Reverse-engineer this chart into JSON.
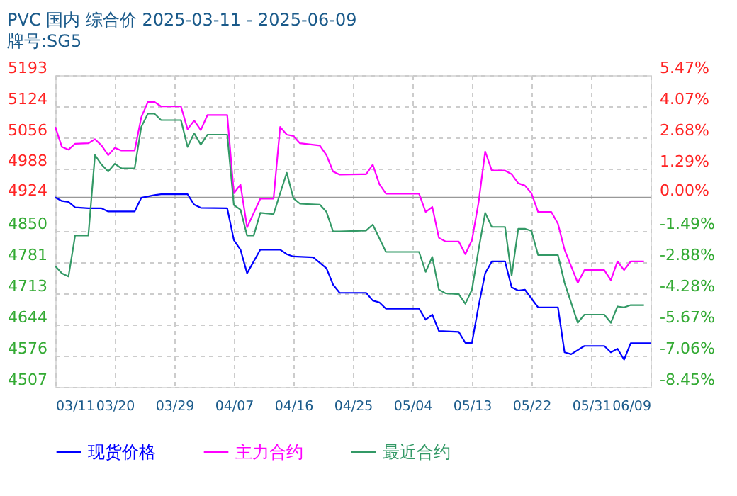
{
  "chart_data": {
    "type": "line",
    "title": "PVC 国内 综合价 2025-03-11 - 2025-06-09",
    "subtitle": "牌号:SG5",
    "xlim": [
      "2025-03-11",
      "2025-06-09"
    ],
    "xticks": [
      {
        "value": "2025-03-11",
        "label": "03/11"
      },
      {
        "value": "2025-03-20",
        "label": "03/20"
      },
      {
        "value": "2025-03-29",
        "label": "03/29"
      },
      {
        "value": "2025-04-07",
        "label": "04/07"
      },
      {
        "value": "2025-04-16",
        "label": "04/16"
      },
      {
        "value": "2025-04-25",
        "label": "04/25"
      },
      {
        "value": "2025-05-04",
        "label": "05/04"
      },
      {
        "value": "2025-05-13",
        "label": "05/13"
      },
      {
        "value": "2025-05-22",
        "label": "05/22"
      },
      {
        "value": "2025-05-31",
        "label": "05/31"
      },
      {
        "value": "2025-06-09",
        "label": "06/09"
      }
    ],
    "ylim": [
      4507,
      5193
    ],
    "yticks": [
      4507,
      4576,
      4644,
      4713,
      4781,
      4850,
      4924,
      4988,
      5056,
      5124,
      5193
    ],
    "y2lim": [
      -8.45,
      5.47
    ],
    "y2ticks": [
      {
        "value": -8.45,
        "label": "-8.45%"
      },
      {
        "value": -7.06,
        "label": "-7.06%"
      },
      {
        "value": -5.67,
        "label": "-5.67%"
      },
      {
        "value": -4.28,
        "label": "-4.28%"
      },
      {
        "value": -2.88,
        "label": "-2.88%"
      },
      {
        "value": -1.49,
        "label": "-1.49%"
      },
      {
        "value": 0,
        "label": "0.00%"
      },
      {
        "value": 1.29,
        "label": "1.29%"
      },
      {
        "value": 2.68,
        "label": "2.68%"
      },
      {
        "value": 4.07,
        "label": "4.07%"
      },
      {
        "value": 5.47,
        "label": "5.47%"
      }
    ],
    "ref_lines": [
      {
        "axis": "y2",
        "value": 0,
        "color": "#999999",
        "line_style": "solid"
      }
    ],
    "grid": true,
    "legend": "bottom",
    "line_style": "solid",
    "series": [
      {
        "name": "现货价格",
        "color": "#0000ff",
        "x": [
          "2025-03-11",
          "2025-03-12",
          "2025-03-13",
          "2025-03-14",
          "2025-03-16",
          "2025-03-18",
          "2025-03-19",
          "2025-03-23",
          "2025-03-24",
          "2025-03-26",
          "2025-03-27",
          "2025-03-31",
          "2025-04-01",
          "2025-04-02",
          "2025-04-06",
          "2025-04-07",
          "2025-04-08",
          "2025-04-09",
          "2025-04-11",
          "2025-04-14",
          "2025-04-15",
          "2025-04-16",
          "2025-04-19",
          "2025-04-21",
          "2025-04-22",
          "2025-04-23",
          "2025-04-25",
          "2025-04-27",
          "2025-04-28",
          "2025-04-29",
          "2025-04-30",
          "2025-05-05",
          "2025-05-06",
          "2025-05-07",
          "2025-05-08",
          "2025-05-11",
          "2025-05-12",
          "2025-05-13",
          "2025-05-14",
          "2025-05-15",
          "2025-05-16",
          "2025-05-18",
          "2025-05-19",
          "2025-05-20",
          "2025-05-21",
          "2025-05-23",
          "2025-05-26",
          "2025-05-27",
          "2025-05-28",
          "2025-05-30",
          "2025-06-02",
          "2025-06-03",
          "2025-06-04",
          "2025-06-05",
          "2025-06-06",
          "2025-06-09"
        ],
        "values": [
          4924,
          4916,
          4914,
          4902,
          4900,
          4900,
          4893,
          4893,
          4923,
          4929,
          4931,
          4931,
          4908,
          4901,
          4900,
          4830,
          4809,
          4757,
          4809,
          4809,
          4799,
          4794,
          4792,
          4768,
          4732,
          4714,
          4714,
          4714,
          4697,
          4693,
          4679,
          4679,
          4655,
          4666,
          4630,
          4628,
          4604,
          4604,
          4685,
          4757,
          4783,
          4783,
          4726,
          4719,
          4721,
          4682,
          4682,
          4583,
          4579,
          4597,
          4597,
          4583,
          4591,
          4567,
          4603,
          4603
        ]
      },
      {
        "name": "主力合约",
        "color": "#ff00ff",
        "x": [
          "2025-03-11",
          "2025-03-12",
          "2025-03-13",
          "2025-03-14",
          "2025-03-16",
          "2025-03-17",
          "2025-03-18",
          "2025-03-19",
          "2025-03-20",
          "2025-03-21",
          "2025-03-23",
          "2025-03-24",
          "2025-03-25",
          "2025-03-26",
          "2025-03-27",
          "2025-03-30",
          "2025-03-31",
          "2025-04-01",
          "2025-04-02",
          "2025-04-03",
          "2025-04-06",
          "2025-04-07",
          "2025-04-08",
          "2025-04-09",
          "2025-04-11",
          "2025-04-13",
          "2025-04-14",
          "2025-04-15",
          "2025-04-16",
          "2025-04-17",
          "2025-04-20",
          "2025-04-21",
          "2025-04-22",
          "2025-04-23",
          "2025-04-27",
          "2025-04-28",
          "2025-04-29",
          "2025-04-30",
          "2025-05-05",
          "2025-05-06",
          "2025-05-07",
          "2025-05-08",
          "2025-05-09",
          "2025-05-11",
          "2025-05-12",
          "2025-05-13",
          "2025-05-14",
          "2025-05-15",
          "2025-05-16",
          "2025-05-18",
          "2025-05-19",
          "2025-05-20",
          "2025-05-21",
          "2025-05-22",
          "2025-05-23",
          "2025-05-25",
          "2025-05-26",
          "2025-05-27",
          "2025-05-29",
          "2025-05-30",
          "2025-06-02",
          "2025-06-03",
          "2025-06-04",
          "2025-06-05",
          "2025-06-06",
          "2025-06-08"
        ],
        "values": [
          5079,
          5035,
          5029,
          5042,
          5043,
          5052,
          5038,
          5017,
          5033,
          5027,
          5027,
          5100,
          5134,
          5134,
          5124,
          5124,
          5074,
          5093,
          5072,
          5105,
          5105,
          4933,
          4952,
          4858,
          4921,
          4921,
          5079,
          5062,
          5059,
          5043,
          5038,
          5017,
          4981,
          4974,
          4975,
          4996,
          4953,
          4932,
          4932,
          4892,
          4903,
          4835,
          4827,
          4827,
          4799,
          4830,
          4913,
          5025,
          4983,
          4983,
          4975,
          4955,
          4950,
          4933,
          4892,
          4892,
          4866,
          4809,
          4736,
          4764,
          4764,
          4742,
          4783,
          4764,
          4783,
          4783
        ]
      },
      {
        "name": "最近合约",
        "color": "#339966",
        "x": [
          "2025-03-11",
          "2025-03-12",
          "2025-03-13",
          "2025-03-14",
          "2025-03-16",
          "2025-03-17",
          "2025-03-18",
          "2025-03-19",
          "2025-03-20",
          "2025-03-21",
          "2025-03-23",
          "2025-03-24",
          "2025-03-25",
          "2025-03-26",
          "2025-03-27",
          "2025-03-30",
          "2025-03-31",
          "2025-04-01",
          "2025-04-02",
          "2025-04-03",
          "2025-04-06",
          "2025-04-07",
          "2025-04-08",
          "2025-04-09",
          "2025-04-10",
          "2025-04-11",
          "2025-04-13",
          "2025-04-14",
          "2025-04-15",
          "2025-04-16",
          "2025-04-17",
          "2025-04-20",
          "2025-04-21",
          "2025-04-22",
          "2025-04-23",
          "2025-04-27",
          "2025-04-28",
          "2025-04-30",
          "2025-05-05",
          "2025-05-06",
          "2025-05-07",
          "2025-05-08",
          "2025-05-09",
          "2025-05-11",
          "2025-05-12",
          "2025-05-13",
          "2025-05-14",
          "2025-05-15",
          "2025-05-16",
          "2025-05-18",
          "2025-05-19",
          "2025-05-20",
          "2025-05-21",
          "2025-05-22",
          "2025-05-23",
          "2025-05-26",
          "2025-05-27",
          "2025-05-29",
          "2025-05-30",
          "2025-06-02",
          "2025-06-03",
          "2025-06-04",
          "2025-06-05",
          "2025-06-06",
          "2025-06-08"
        ],
        "values": [
          4773,
          4757,
          4750,
          4840,
          4840,
          5017,
          4996,
          4981,
          4998,
          4988,
          4988,
          5079,
          5108,
          5108,
          5094,
          5094,
          5035,
          5065,
          5040,
          5062,
          5062,
          4907,
          4897,
          4840,
          4840,
          4890,
          4887,
          4933,
          4978,
          4922,
          4910,
          4908,
          4892,
          4849,
          4849,
          4851,
          4864,
          4804,
          4804,
          4760,
          4793,
          4721,
          4713,
          4711,
          4690,
          4721,
          4809,
          4890,
          4859,
          4859,
          4752,
          4855,
          4855,
          4850,
          4797,
          4797,
          4736,
          4648,
          4666,
          4666,
          4648,
          4684,
          4682,
          4687,
          4687
        ]
      }
    ]
  }
}
